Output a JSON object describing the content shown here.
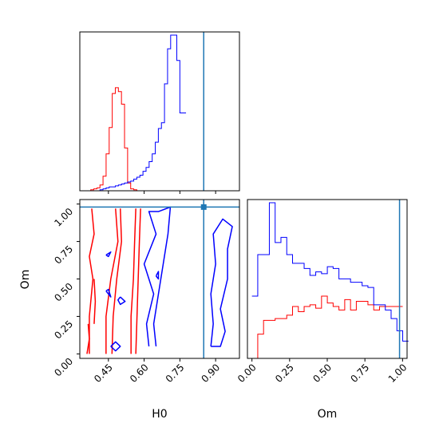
{
  "chart_data": {
    "type": "corner",
    "parameters": [
      "H0",
      "Om"
    ],
    "x_axis_labels": {
      "H0": "H0",
      "Om": "Om"
    },
    "y_axis_labels": {
      "Om": "Om"
    },
    "ranges": {
      "H0": [
        0.33,
        1.0
      ],
      "Om": [
        -0.03,
        1.03
      ]
    },
    "ticks": {
      "H0": [
        {
          "value": 0.45,
          "label": "0.45"
        },
        {
          "value": 0.6,
          "label": "0.60"
        },
        {
          "value": 0.75,
          "label": "0.75"
        },
        {
          "value": 0.9,
          "label": "0.90"
        }
      ],
      "Om": [
        {
          "value": 0.0,
          "label": "0.00"
        },
        {
          "value": 0.25,
          "label": "0.25"
        },
        {
          "value": 0.5,
          "label": "0.50"
        },
        {
          "value": 0.75,
          "label": "0.75"
        },
        {
          "value": 1.0,
          "label": "1.00"
        }
      ]
    },
    "truths": {
      "H0": 0.85,
      "Om": 0.98
    },
    "truth_color": "#1f77b4",
    "series": [
      {
        "color": "#ff0000",
        "hist_H0": {
          "x_start": 0.35,
          "bin_width": 0.0129,
          "counts": [
            0,
            0,
            1,
            2,
            3,
            6,
            15,
            38,
            65,
            100,
            106,
            102,
            89,
            44,
            8,
            2,
            1,
            0,
            0,
            0,
            0,
            0,
            0,
            0,
            0,
            0,
            0,
            0,
            0,
            0,
            0,
            0,
            0,
            0,
            0,
            0,
            0,
            0,
            0,
            0,
            0,
            0,
            0,
            0,
            0,
            0,
            0,
            0,
            0,
            0
          ]
        },
        "hist_Om": {
          "x_start": 0.0,
          "bin_width": 0.0385,
          "counts": [
            0,
            14,
            22,
            22,
            23,
            23,
            25,
            30,
            27,
            30,
            31,
            29,
            36,
            32,
            30,
            28,
            34,
            28,
            33,
            33,
            31,
            28,
            30,
            30,
            30,
            30
          ]
        },
        "contours": [
          [
            [
              0.37,
              0.0
            ],
            [
              0.37,
              0.25
            ],
            [
              0.385,
              0.5
            ],
            [
              0.37,
              0.65
            ],
            [
              0.39,
              0.8
            ],
            [
              0.38,
              0.97
            ]
          ],
          [
            [
              0.44,
              0.0
            ],
            [
              0.44,
              0.25
            ],
            [
              0.46,
              0.5
            ],
            [
              0.49,
              0.75
            ],
            [
              0.48,
              0.97
            ]
          ],
          [
            [
              0.465,
              0.0
            ],
            [
              0.47,
              0.25
            ],
            [
              0.485,
              0.5
            ],
            [
              0.505,
              0.75
            ],
            [
              0.5,
              0.97
            ]
          ],
          [
            [
              0.545,
              0.0
            ],
            [
              0.545,
              0.25
            ],
            [
              0.555,
              0.5
            ],
            [
              0.56,
              0.75
            ],
            [
              0.565,
              0.97
            ]
          ],
          [
            [
              0.565,
              0.0
            ],
            [
              0.57,
              0.25
            ],
            [
              0.575,
              0.5
            ],
            [
              0.58,
              0.75
            ],
            [
              0.585,
              0.97
            ]
          ],
          [
            [
              0.36,
              0.0
            ],
            [
              0.37,
              0.1
            ],
            [
              0.365,
              0.2
            ]
          ],
          [
            [
              0.39,
              0.2
            ],
            [
              0.395,
              0.35
            ],
            [
              0.39,
              0.5
            ]
          ]
        ]
      },
      {
        "color": "#0000ff",
        "hist_H0": {
          "x_start": 0.35,
          "bin_width": 0.0129,
          "counts": [
            0,
            0,
            0,
            0,
            0,
            1,
            2,
            3,
            4,
            4,
            5,
            6,
            7,
            8,
            9,
            10,
            12,
            14,
            16,
            20,
            24,
            30,
            38,
            50,
            64,
            70,
            110,
            146,
            160,
            160,
            134,
            80,
            80
          ]
        },
        "hist_Om": {
          "x_start": 0.0,
          "bin_width": 0.0385,
          "counts": [
            36,
            60,
            60,
            90,
            67,
            70,
            60,
            55,
            55,
            52,
            48,
            50,
            49,
            53,
            52,
            46,
            46,
            44,
            44,
            42,
            41,
            31,
            31,
            28,
            23,
            16,
            10
          ]
        },
        "contours": [
          [
            [
              0.62,
              0.05
            ],
            [
              0.61,
              0.2
            ],
            [
              0.64,
              0.4
            ],
            [
              0.6,
              0.6
            ],
            [
              0.65,
              0.8
            ],
            [
              0.62,
              0.95
            ],
            [
              0.66,
              0.95
            ],
            [
              0.71,
              0.98
            ],
            [
              0.7,
              0.8
            ],
            [
              0.68,
              0.6
            ],
            [
              0.66,
              0.4
            ],
            [
              0.64,
              0.2
            ],
            [
              0.65,
              0.05
            ]
          ],
          [
            [
              0.88,
              0.05
            ],
            [
              0.92,
              0.05
            ],
            [
              0.94,
              0.15
            ],
            [
              0.92,
              0.3
            ],
            [
              0.95,
              0.5
            ],
            [
              0.95,
              0.7
            ],
            [
              0.97,
              0.85
            ],
            [
              0.93,
              0.9
            ],
            [
              0.89,
              0.8
            ],
            [
              0.9,
              0.6
            ],
            [
              0.88,
              0.4
            ],
            [
              0.89,
              0.2
            ],
            [
              0.88,
              0.05
            ]
          ],
          [
            [
              0.46,
              0.05
            ],
            [
              0.48,
              0.08
            ],
            [
              0.5,
              0.05
            ],
            [
              0.48,
              0.02
            ],
            [
              0.46,
              0.05
            ]
          ],
          [
            [
              0.44,
              0.42
            ],
            [
              0.46,
              0.38
            ],
            [
              0.45,
              0.43
            ],
            [
              0.44,
              0.42
            ]
          ],
          [
            [
              0.5,
              0.38
            ],
            [
              0.52,
              0.35
            ],
            [
              0.5,
              0.33
            ],
            [
              0.49,
              0.36
            ],
            [
              0.5,
              0.38
            ]
          ],
          [
            [
              0.44,
              0.66
            ],
            [
              0.46,
              0.68
            ],
            [
              0.45,
              0.65
            ],
            [
              0.44,
              0.66
            ]
          ],
          [
            [
              0.65,
              0.52
            ],
            [
              0.66,
              0.55
            ],
            [
              0.66,
              0.5
            ],
            [
              0.65,
              0.52
            ]
          ]
        ]
      }
    ]
  }
}
